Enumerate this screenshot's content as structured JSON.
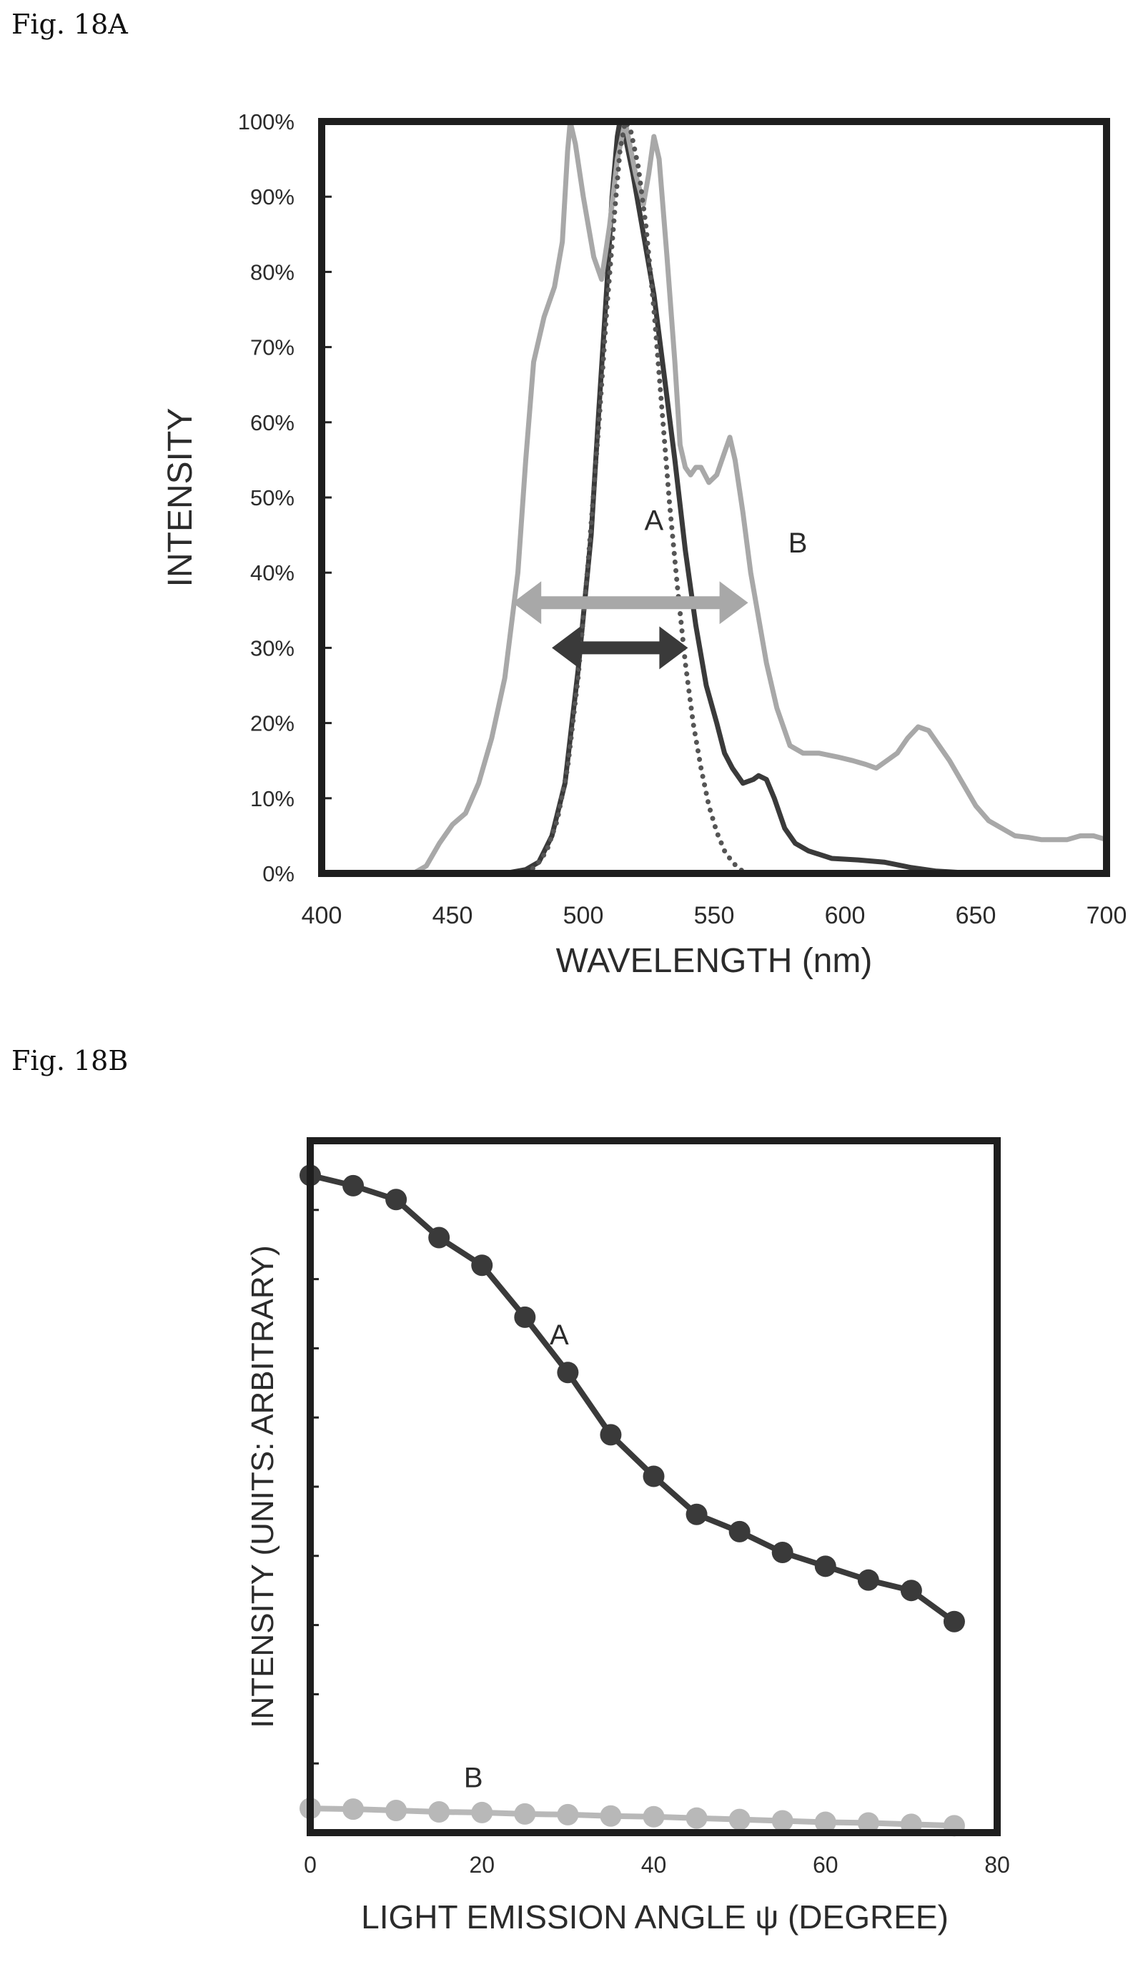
{
  "figures": {
    "a_label": "Fig. 18A",
    "b_label": "Fig. 18B"
  },
  "chart_data": [
    {
      "type": "line",
      "xlabel": "WAVELENGTH (nm)",
      "ylabel": "INTENSITY",
      "xlim": [
        400,
        700
      ],
      "ylim": [
        0,
        100
      ],
      "xticks": [
        "400",
        "450",
        "500",
        "550",
        "600",
        "650",
        "700"
      ],
      "yticks": [
        "0%",
        "10%",
        "20%",
        "30%",
        "40%",
        "50%",
        "60%",
        "70%",
        "80%",
        "90%",
        "100%"
      ],
      "grid": false,
      "annotations": [
        {
          "text": "A",
          "x": 527,
          "y": 47
        },
        {
          "text": "B",
          "x": 582,
          "y": 44
        },
        {
          "text": "",
          "type": "double-arrow",
          "x1": 473,
          "x2": 563,
          "y": 36,
          "color": "#a8a8a8"
        },
        {
          "text": "",
          "type": "double-arrow",
          "x1": 488,
          "x2": 540,
          "y": 30,
          "color": "#3a3a3a"
        }
      ],
      "series": [
        {
          "name": "A",
          "color": "#3a3a3a",
          "style": "solid",
          "points": [
            [
              470,
              0
            ],
            [
              478,
              0.5
            ],
            [
              483,
              1.5
            ],
            [
              488,
              5
            ],
            [
              493,
              12
            ],
            [
              498,
              27
            ],
            [
              503,
              45
            ],
            [
              506,
              62
            ],
            [
              509,
              78
            ],
            [
              511,
              90
            ],
            [
              513,
              98
            ],
            [
              514,
              100
            ],
            [
              516,
              98
            ],
            [
              519,
              93
            ],
            [
              523,
              85
            ],
            [
              527,
              77
            ],
            [
              531,
              66
            ],
            [
              535,
              55
            ],
            [
              539,
              43
            ],
            [
              543,
              33
            ],
            [
              547,
              25
            ],
            [
              551,
              20
            ],
            [
              554,
              16
            ],
            [
              557,
              14
            ],
            [
              561,
              12
            ],
            [
              565,
              12.5
            ],
            [
              567,
              13
            ],
            [
              570,
              12.5
            ],
            [
              573,
              10
            ],
            [
              577,
              6
            ],
            [
              581,
              4
            ],
            [
              586,
              3
            ],
            [
              595,
              2
            ],
            [
              605,
              1.8
            ],
            [
              615,
              1.5
            ],
            [
              625,
              0.8
            ],
            [
              635,
              0.3
            ],
            [
              650,
              0
            ]
          ]
        },
        {
          "name": "B",
          "color": "#a8a8a8",
          "style": "solid",
          "points": [
            [
              435,
              0
            ],
            [
              440,
              1
            ],
            [
              445,
              4
            ],
            [
              450,
              6.5
            ],
            [
              455,
              8
            ],
            [
              460,
              12
            ],
            [
              465,
              18
            ],
            [
              470,
              26
            ],
            [
              475,
              40
            ],
            [
              478,
              55
            ],
            [
              481,
              68
            ],
            [
              485,
              74
            ],
            [
              489,
              78
            ],
            [
              492,
              84
            ],
            [
              494,
              96
            ],
            [
              495,
              100
            ],
            [
              497,
              97
            ],
            [
              500,
              90
            ],
            [
              504,
              82
            ],
            [
              507,
              79
            ],
            [
              510,
              86
            ],
            [
              513,
              95
            ],
            [
              516,
              100
            ],
            [
              520,
              93
            ],
            [
              523,
              89
            ],
            [
              525,
              93
            ],
            [
              527,
              98
            ],
            [
              529,
              95
            ],
            [
              532,
              82
            ],
            [
              535,
              68
            ],
            [
              537,
              57
            ],
            [
              539,
              54
            ],
            [
              541,
              53
            ],
            [
              543,
              54
            ],
            [
              545,
              54
            ],
            [
              548,
              52
            ],
            [
              551,
              53
            ],
            [
              554,
              56
            ],
            [
              556,
              58
            ],
            [
              558,
              55
            ],
            [
              561,
              48
            ],
            [
              564,
              40
            ],
            [
              567,
              34
            ],
            [
              570,
              28
            ],
            [
              574,
              22
            ],
            [
              579,
              17
            ],
            [
              584,
              16
            ],
            [
              590,
              16
            ],
            [
              597,
              15.5
            ],
            [
              603,
              15
            ],
            [
              608,
              14.5
            ],
            [
              612,
              14
            ],
            [
              616,
              15
            ],
            [
              620,
              16
            ],
            [
              624,
              18
            ],
            [
              628,
              19.5
            ],
            [
              632,
              19
            ],
            [
              636,
              17
            ],
            [
              640,
              15
            ],
            [
              645,
              12
            ],
            [
              650,
              9
            ],
            [
              655,
              7
            ],
            [
              660,
              6
            ],
            [
              665,
              5
            ],
            [
              670,
              4.8
            ],
            [
              675,
              4.5
            ],
            [
              680,
              4.5
            ],
            [
              685,
              4.5
            ],
            [
              690,
              5
            ],
            [
              695,
              5
            ],
            [
              700,
              4.5
            ]
          ]
        },
        {
          "name": "",
          "color": "#555555",
          "style": "dotted",
          "points": [
            [
              478,
              0
            ],
            [
              482,
              1
            ],
            [
              486,
              3
            ],
            [
              490,
              7
            ],
            [
              494,
              14
            ],
            [
              498,
              26
            ],
            [
              502,
              42
            ],
            [
              506,
              60
            ],
            [
              509,
              75
            ],
            [
              512,
              88
            ],
            [
              514,
              96
            ],
            [
              516,
              100
            ],
            [
              518,
              99
            ],
            [
              521,
              94
            ],
            [
              524,
              86
            ],
            [
              527,
              75
            ],
            [
              530,
              62
            ],
            [
              533,
              49
            ],
            [
              536,
              38
            ],
            [
              539,
              28
            ],
            [
              542,
              20
            ],
            [
              545,
              14
            ],
            [
              548,
              9
            ],
            [
              551,
              5.5
            ],
            [
              554,
              3
            ],
            [
              557,
              1.5
            ],
            [
              560,
              0.5
            ],
            [
              563,
              0
            ]
          ]
        }
      ]
    },
    {
      "type": "line",
      "xlabel": "LIGHT EMISSION ANGLE ψ (DEGREE)",
      "ylabel": "INTENSITY (UNITS: ARBITRARY)",
      "xlim": [
        0,
        80
      ],
      "ylim": [
        0,
        100
      ],
      "xticks": [
        "0",
        "20",
        "40",
        "60",
        "80"
      ],
      "grid": false,
      "annotations": [
        {
          "text": "A",
          "x": 29,
          "y": 72
        },
        {
          "text": "B",
          "x": 19,
          "y": 8
        }
      ],
      "series": [
        {
          "name": "A",
          "color": "#3a3a3a",
          "x": [
            0,
            5,
            10,
            15,
            20,
            25,
            30,
            35,
            40,
            45,
            50,
            55,
            60,
            65,
            70,
            75
          ],
          "values": [
            95,
            93.5,
            91.5,
            86,
            82,
            74.5,
            66.5,
            57.5,
            51.5,
            46,
            43.5,
            40.5,
            38.5,
            36.5,
            35,
            30.5
          ]
        },
        {
          "name": "B",
          "color": "#b8b8b8",
          "x": [
            0,
            5,
            10,
            15,
            20,
            25,
            30,
            35,
            40,
            45,
            50,
            55,
            60,
            65,
            70,
            75
          ],
          "values": [
            3.5,
            3.4,
            3.2,
            3,
            2.9,
            2.7,
            2.6,
            2.4,
            2.3,
            2.1,
            1.9,
            1.7,
            1.5,
            1.4,
            1.2,
            1
          ]
        }
      ]
    }
  ]
}
